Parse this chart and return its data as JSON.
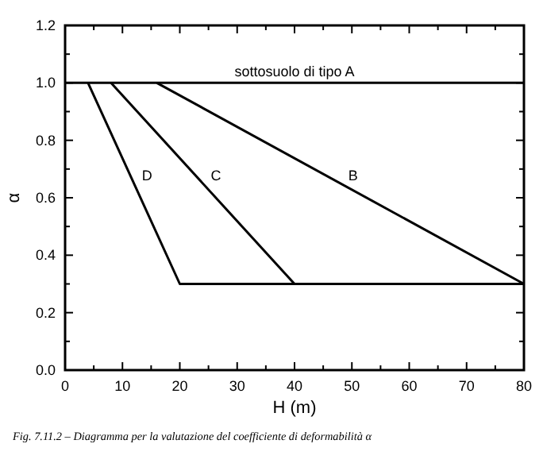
{
  "chart_data": {
    "type": "line",
    "xlabel": "H (m)",
    "ylabel": "α",
    "xlim": [
      0,
      80
    ],
    "xticks": [
      0,
      {
        "value": 5,
        "label": null
      },
      10,
      {
        "value": 15,
        "label": null
      },
      20,
      {
        "value": 25,
        "label": null
      },
      30,
      {
        "value": 35,
        "label": null
      },
      40,
      {
        "value": 45,
        "label": null
      },
      50,
      {
        "value": 55,
        "label": null
      },
      60,
      {
        "value": 65,
        "label": null
      },
      70,
      {
        "value": 75,
        "label": null
      },
      80
    ],
    "ylim": [
      0,
      1.2
    ],
    "yticks": [
      {
        "value": 0,
        "label": "0.0"
      },
      {
        "value": 0.1,
        "label": null
      },
      {
        "value": 0.2,
        "label": "0.2"
      },
      {
        "value": 0.3,
        "label": null
      },
      {
        "value": 0.4,
        "label": "0.4"
      },
      {
        "value": 0.5,
        "label": null
      },
      {
        "value": 0.6,
        "label": "0.6"
      },
      {
        "value": 0.7,
        "label": null
      },
      {
        "value": 0.8,
        "label": "0.8"
      },
      {
        "value": 0.9,
        "label": null
      },
      {
        "value": 1,
        "label": "1.0"
      },
      {
        "value": 1.1,
        "label": null
      },
      {
        "value": 1.2,
        "label": "1.2"
      }
    ],
    "series": [
      {
        "name": "sottosuolo di tipo A",
        "color": "#000000",
        "x": [
          0,
          80
        ],
        "values": [
          1,
          1
        ]
      },
      {
        "name": "B",
        "color": "#000000",
        "x": [
          16,
          80
        ],
        "values": [
          1,
          0.3
        ]
      },
      {
        "name": "C",
        "color": "#000000",
        "x": [
          8,
          40,
          80
        ],
        "values": [
          1,
          0.3,
          0.3
        ]
      },
      {
        "name": "D",
        "color": "#000000",
        "x": [
          4,
          20,
          80
        ],
        "values": [
          1,
          0.3,
          0.3
        ]
      }
    ],
    "annotations": [
      "Fig. 7.11.2 – Diagramma per la valutazione del coefficiente di deformabilità α"
    ]
  }
}
